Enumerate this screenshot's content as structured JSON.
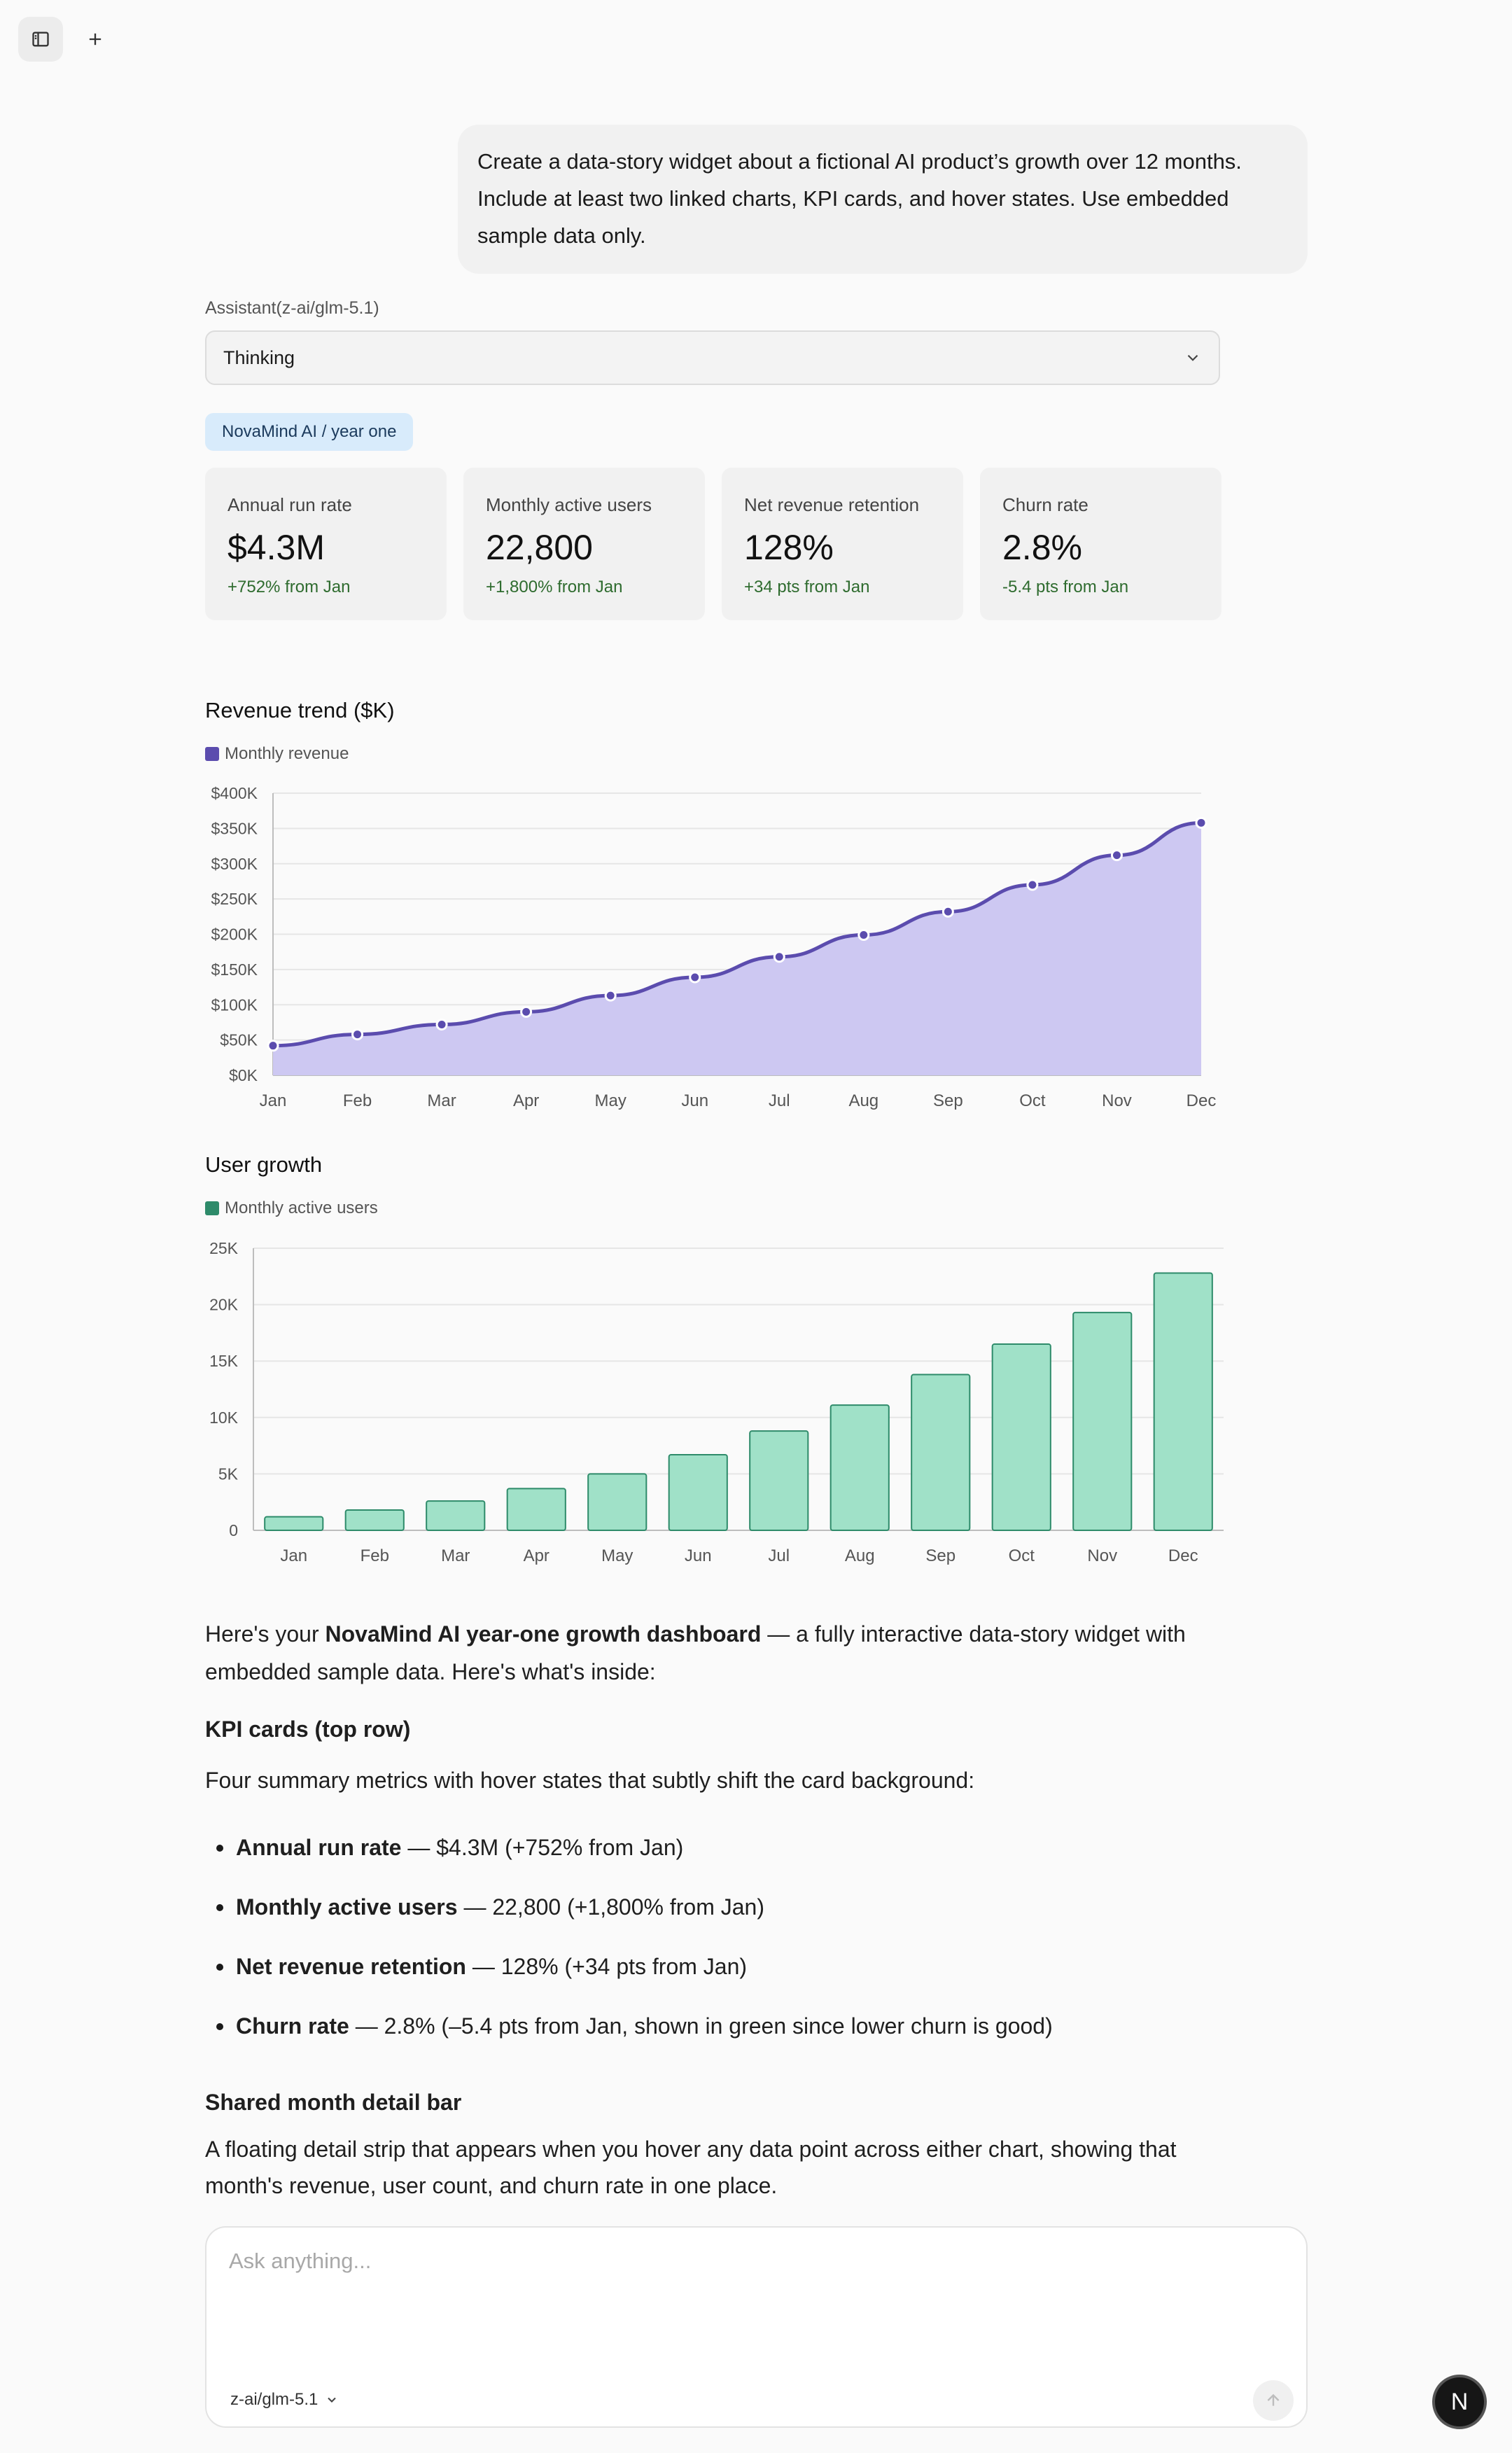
{
  "user_message": "Create a data-story widget about a fictional AI product’s growth over 12 months. Include at least two linked charts, KPI cards, and hover states. Use embedded sample data only.",
  "assistant_label": "Assistant(z-ai/glm-5.1)",
  "thinking_label": "Thinking",
  "widget": {
    "tag": "NovaMind AI / year one",
    "kpis": [
      {
        "label": "Annual run rate",
        "value": "$4.3M",
        "change": "+752% from Jan"
      },
      {
        "label": "Monthly active users",
        "value": "22,800",
        "change": "+1,800% from Jan"
      },
      {
        "label": "Net revenue retention",
        "value": "128%",
        "change": "+34 pts from Jan"
      },
      {
        "label": "Churn rate",
        "value": "2.8%",
        "change": "-5.4 pts from Jan"
      }
    ]
  },
  "chart_data": [
    {
      "type": "area",
      "title": "Revenue trend ($K)",
      "categories": [
        "Jan",
        "Feb",
        "Mar",
        "Apr",
        "May",
        "Jun",
        "Jul",
        "Aug",
        "Sep",
        "Oct",
        "Nov",
        "Dec"
      ],
      "series": [
        {
          "name": "Monthly revenue",
          "values": [
            42,
            58,
            72,
            90,
            113,
            139,
            168,
            199,
            232,
            270,
            312,
            358
          ],
          "color": "#5b4cae",
          "fill": "#cdc8f2"
        }
      ],
      "ylim": [
        0,
        400
      ],
      "yticks": [
        "$0K",
        "$50K",
        "$100K",
        "$150K",
        "$200K",
        "$250K",
        "$300K",
        "$350K",
        "$400K"
      ],
      "grid": true,
      "legend": "top-left"
    },
    {
      "type": "bar",
      "title": "User growth",
      "categories": [
        "Jan",
        "Feb",
        "Mar",
        "Apr",
        "May",
        "Jun",
        "Jul",
        "Aug",
        "Sep",
        "Oct",
        "Nov",
        "Dec"
      ],
      "series": [
        {
          "name": "Monthly active users",
          "values": [
            1200,
            1800,
            2600,
            3700,
            5000,
            6700,
            8800,
            11100,
            13800,
            16500,
            19300,
            22800
          ],
          "color": "#2e8b6a",
          "fill": "#a0e1c8"
        }
      ],
      "ylim": [
        0,
        25000
      ],
      "yticks": [
        "0",
        "5K",
        "10K",
        "15K",
        "20K",
        "25K"
      ],
      "grid": true,
      "legend": "top-left"
    }
  ],
  "answer": {
    "intro_pre": "Here's your ",
    "intro_bold": "NovaMind AI year-one growth dashboard",
    "intro_post": " — a fully interactive data-story widget with embedded sample data. Here's what's inside:",
    "kpi_heading": "KPI cards (top row)",
    "kpi_desc": "Four summary metrics with hover states that subtly shift the card background:",
    "bullets": [
      {
        "bold": "Annual run rate",
        "text": " — $4.3M (+752% from Jan)"
      },
      {
        "bold": "Monthly active users",
        "text": " — 22,800 (+1,800% from Jan)"
      },
      {
        "bold": "Net revenue retention",
        "text": " — 128% (+34 pts from Jan)"
      },
      {
        "bold": "Churn rate",
        "text": " — 2.8% (–5.4 pts from Jan, shown in green since lower churn is good)"
      }
    ],
    "detail_heading": "Shared month detail bar",
    "detail_desc": "A floating detail strip that appears when you hover any data point across either chart, showing that month's revenue, user count, and churn rate in one place."
  },
  "composer": {
    "placeholder": "Ask anything...",
    "model": "z-ai/glm-5.1"
  },
  "fab_label": "N",
  "icons": {
    "sidebar_toggle": "sidebar-icon",
    "new_chat": "plus-icon",
    "thinking_toggle": "chevron-down-icon",
    "model_toggle": "chevron-down-icon",
    "send": "arrow-up-icon"
  }
}
